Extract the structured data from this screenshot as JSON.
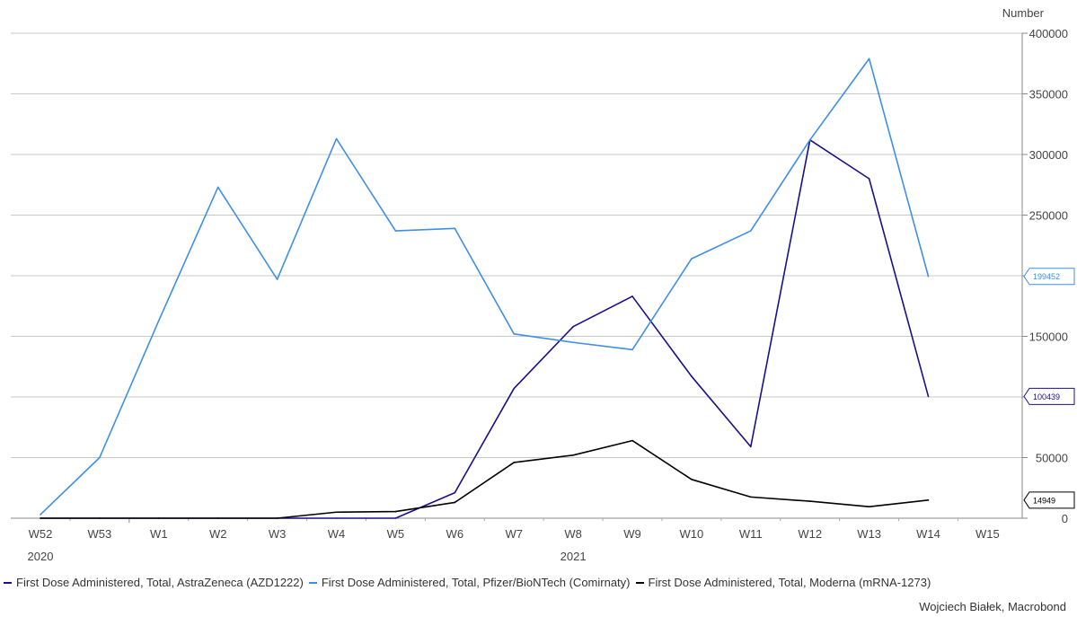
{
  "chart_data": {
    "type": "line",
    "ylabel": "Number",
    "categories": [
      "W52",
      "W53",
      "W1",
      "W2",
      "W3",
      "W4",
      "W5",
      "W6",
      "W7",
      "W8",
      "W9",
      "W10",
      "W11",
      "W12",
      "W13",
      "W14",
      "W15"
    ],
    "year_labels": [
      {
        "label": "2020",
        "under": "W52"
      },
      {
        "label": "2021",
        "under": "W8"
      }
    ],
    "ylim": [
      0,
      400000
    ],
    "yticks": [
      0,
      50000,
      100000,
      150000,
      200000,
      250000,
      300000,
      350000,
      400000
    ],
    "ytick_labels": [
      "0",
      "50000",
      "",
      "150000",
      "",
      "250000",
      "300000",
      "350000",
      "400000"
    ],
    "grid": true,
    "series": [
      {
        "name": "First Dose Administered, Total, AstraZeneca (AZD1222)",
        "color": "#1a0f8c",
        "values": [
          0,
          0,
          0,
          0,
          0,
          0,
          0,
          21000,
          107000,
          158000,
          183000,
          117000,
          59000,
          312000,
          280000,
          100439,
          null
        ],
        "end_label": "100439"
      },
      {
        "name": "First Dose Administered, Total, Pfizer/BioNTech (Comirnaty)",
        "color": "#3f8ee8",
        "values": [
          3000,
          50000,
          163000,
          273000,
          197000,
          313000,
          237000,
          239000,
          152000,
          145000,
          139000,
          214000,
          237000,
          312000,
          379000,
          199452,
          null
        ],
        "end_label": "199452"
      },
      {
        "name": "First Dose Administered, Total, Moderna (mRNA-1273)",
        "color": "#000000",
        "values": [
          0,
          0,
          0,
          0,
          0,
          5000,
          5500,
          13000,
          46000,
          52000,
          64000,
          32000,
          17500,
          14000,
          9500,
          14949,
          null
        ],
        "end_label": "14949"
      }
    ]
  },
  "credit": "Wojciech Białek, Macrobond"
}
